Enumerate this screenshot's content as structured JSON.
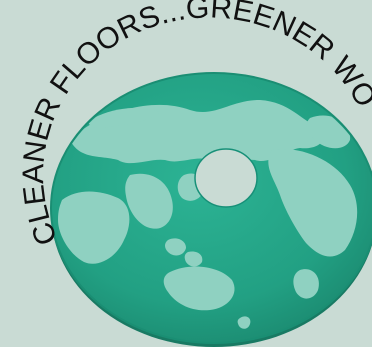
{
  "slogan": "CLEANER FLOORS...GREENER WORLD",
  "colors": {
    "background": "#c9dbd4",
    "pad": "#23a586",
    "land": "#8fd1c1",
    "text": "#111111"
  },
  "image": {
    "subject": "floor-pad-world-map-icon"
  }
}
